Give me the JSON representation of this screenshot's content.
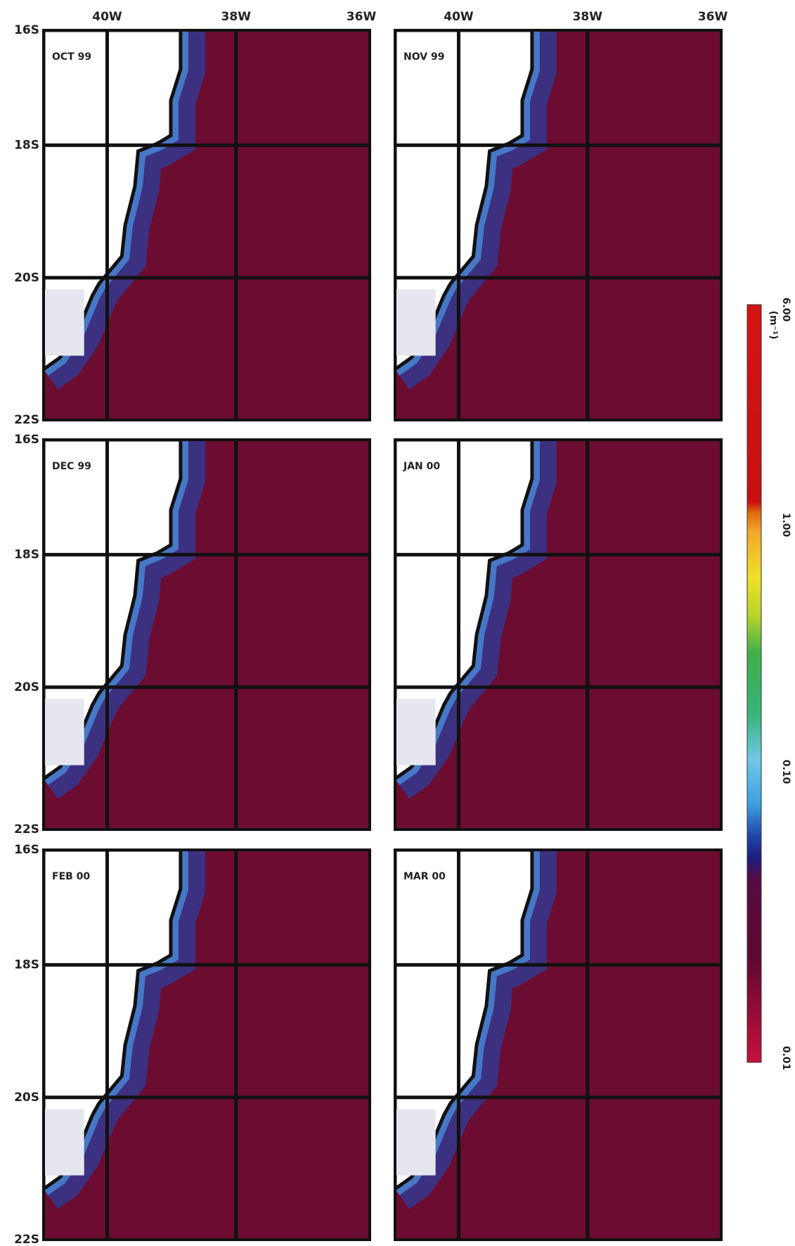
{
  "x_axis_labels": [
    "40W",
    "38W",
    "36W"
  ],
  "y_axis_labels": [
    "16S",
    "18S",
    "20S",
    "22S"
  ],
  "panels": [
    {
      "label": "OCT 99"
    },
    {
      "label": "NOV 99"
    },
    {
      "label": "DEC 99"
    },
    {
      "label": "JAN 00"
    },
    {
      "label": "FEB 00"
    },
    {
      "label": "MAR 00"
    }
  ],
  "colorbar": {
    "unit": "(m⁻¹)",
    "labels": [
      "0.01",
      "0.10",
      "1.00",
      "6.00"
    ]
  }
}
